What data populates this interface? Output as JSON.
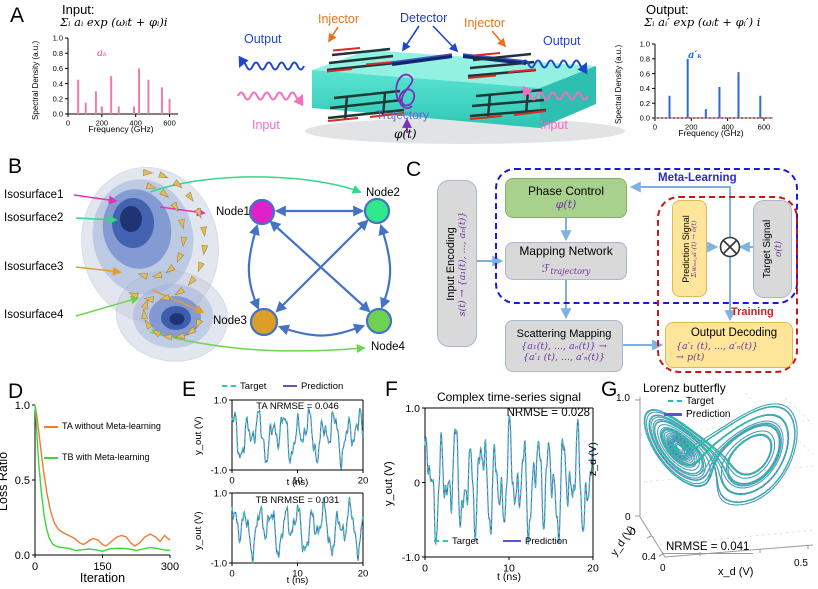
{
  "panel_labels": {
    "A": "A",
    "B": "B",
    "C": "C",
    "D": "D",
    "E": "E",
    "F": "F",
    "G": "G"
  },
  "panelA": {
    "input_formula": "Σᵢ aᵢ exp (ωᵢt + φᵢ)i",
    "output_formula": "Σᵢ aᵢ′ exp (ωᵢt + φᵢ′) i",
    "device": {
      "injector_left": "Injector",
      "detector": "Detector",
      "injector_right": "Injector",
      "output_left": "Output",
      "output_right": "Output",
      "input_left": "Input",
      "input_right": "Input",
      "trajectory": "Trajectory",
      "phase": "φ(t)"
    }
  },
  "panelB": {
    "isosurfaces": [
      "Isosurface1",
      "Isosurface2",
      "Isosurface3",
      "Isosurface4"
    ],
    "nodes": [
      {
        "label": "Node1",
        "color": "#E020C8"
      },
      {
        "label": "Node2",
        "color": "#2FE98C"
      },
      {
        "label": "Node3",
        "color": "#DB9F27"
      },
      {
        "label": "Node4",
        "color": "#6FD153"
      }
    ]
  },
  "panelC": {
    "meta_learning": "Meta-Learning",
    "training": "Training",
    "input_encoding": {
      "title": "Input Encoding",
      "formula": "s(t) → {a₁(t), ..., aₙ(t)}"
    },
    "phase_control": {
      "title": "Phase Control",
      "formula": "φ(t)"
    },
    "mapping_network": {
      "title": "Mapping Network",
      "symbol": "ℱ",
      "symbol_sub": "trajectory"
    },
    "scattering_mapping": {
      "title": "Scattering Mapping",
      "formula1": "{a₁(t), ..., aₙ(t)} →",
      "formula2": "{a′₁ (t), ..., a′ₙ(t)}"
    },
    "prediction_signal": {
      "title": "Prediction Signal",
      "formula": "Σᵢwₒᵤₜ,ᵢa′ᵢ(t) → ô(t)"
    },
    "target_signal": {
      "title": "Target Signal",
      "formula": "o(t)"
    },
    "output_decoding": {
      "title": "Output Decoding",
      "formula1": "{a′₁ (t), ..., a′ₙ(t)}",
      "formula2": "→ p(t)"
    }
  },
  "chart_data": [
    {
      "id": "input-spectrum",
      "type": "bar",
      "title": "Input:",
      "annotation": "aₖ",
      "xlabel": "Frequency (GHz)",
      "ylabel": "Spectral Density (a.u.)",
      "xlim": [
        0,
        650
      ],
      "ylim": [
        0,
        1
      ],
      "xticks": [
        "0",
        "200",
        "400",
        "600"
      ],
      "yticks": [
        "0.0",
        "0.2",
        "0.4",
        "0.6",
        "0.8",
        "1.0"
      ],
      "color": "#F27BAE",
      "x": [
        60,
        105,
        165,
        200,
        255,
        300,
        390,
        420,
        475,
        555,
        600
      ],
      "values": [
        0.45,
        0.15,
        0.3,
        0.1,
        0.5,
        0.1,
        0.1,
        0.6,
        0.45,
        0.35,
        0.2
      ]
    },
    {
      "id": "output-spectrum",
      "type": "bar",
      "title": "Output:",
      "annotation": "a′ₖ",
      "xlabel": "Frequency (GHz)",
      "ylabel": "Spectral Density (a.u.)",
      "xlim": [
        0,
        650
      ],
      "ylim": [
        0,
        1
      ],
      "xticks": [
        "0",
        "200",
        "400",
        "600"
      ],
      "yticks": [
        "0.0",
        "0.2",
        "0.4",
        "0.6",
        "0.8",
        "1.0"
      ],
      "color": "#2B6BD4",
      "baseline_dashed": true,
      "baseline_color": "#D04040",
      "x": [
        80,
        180,
        280,
        355,
        460,
        580
      ],
      "values": [
        0.3,
        0.8,
        0.12,
        0.42,
        0.62,
        0.3
      ]
    },
    {
      "id": "loss",
      "type": "line",
      "xlabel": "Iteration",
      "ylabel": "Loss Ratio",
      "xlim": [
        0,
        300
      ],
      "ylim": [
        0,
        1
      ],
      "xticks": [
        "0",
        "150",
        "300"
      ],
      "yticks": [
        "0.0",
        "0.5",
        "1.0"
      ],
      "series": [
        {
          "name": "TA without Meta-learning",
          "color": "#ED7D31",
          "x": [
            0,
            4,
            10,
            18,
            26,
            34,
            42,
            52,
            62,
            75,
            88,
            100,
            108,
            118,
            128,
            140,
            150,
            158,
            170,
            182,
            192,
            203,
            213,
            222,
            232,
            244,
            256,
            268,
            278,
            288,
            295,
            300
          ],
          "y": [
            1.0,
            0.93,
            0.78,
            0.58,
            0.42,
            0.3,
            0.22,
            0.17,
            0.15,
            0.13,
            0.11,
            0.08,
            0.07,
            0.09,
            0.11,
            0.1,
            0.07,
            0.06,
            0.09,
            0.12,
            0.13,
            0.12,
            0.08,
            0.06,
            0.08,
            0.12,
            0.14,
            0.12,
            0.09,
            0.13,
            0.11,
            0.1
          ]
        },
        {
          "name": "TB with Meta-learning",
          "color": "#39D839",
          "x": [
            0,
            4,
            8,
            14,
            20,
            26,
            32,
            40,
            50,
            60,
            75,
            90,
            105,
            120,
            135,
            150,
            165,
            180,
            195,
            210,
            225,
            240,
            255,
            270,
            285,
            300
          ],
          "y": [
            1.0,
            0.82,
            0.62,
            0.42,
            0.27,
            0.17,
            0.11,
            0.07,
            0.055,
            0.05,
            0.045,
            0.03,
            0.035,
            0.04,
            0.035,
            0.025,
            0.04,
            0.045,
            0.045,
            0.04,
            0.03,
            0.04,
            0.05,
            0.045,
            0.035,
            0.03
          ]
        }
      ]
    },
    {
      "id": "ta-signal",
      "type": "line",
      "title": "TA  NRMSE = 0.046",
      "nrmse": 0.046,
      "xlabel": "t (ns)",
      "ylabel": "y_out (V)",
      "legend": [
        "Target",
        "Prediction"
      ],
      "xlim": [
        0,
        20
      ],
      "ylim": [
        -1,
        1
      ],
      "xticks": [
        "0",
        "10",
        "20"
      ],
      "yticks": [
        "1.0",
        "-1.0"
      ],
      "target_color": "#35C4AE",
      "pred_color": "#6055C8",
      "t_range": [
        0,
        20
      ],
      "components": [
        {
          "amp": 0.42,
          "freq": 0.52,
          "phase": 0.5
        },
        {
          "amp": 0.3,
          "freq": 0.26,
          "phase": 2.1
        },
        {
          "amp": 0.18,
          "freq": 1.15,
          "phase": 4.0
        },
        {
          "amp": 0.09,
          "freq": 1.9,
          "phase": 1.0
        },
        {
          "amp": 0.05,
          "freq": 3.1,
          "phase": 0.3
        }
      ]
    },
    {
      "id": "tb-signal",
      "type": "line",
      "title": "TB  NRMSE = 0.031",
      "nrmse": 0.031,
      "xlabel": "t (ns)",
      "ylabel": "y_out (V)",
      "legend": [
        "Target",
        "Prediction"
      ],
      "xlim": [
        0,
        20
      ],
      "ylim": [
        -1,
        1
      ],
      "xticks": [
        "0",
        "10",
        "20"
      ],
      "yticks": [
        "1.0",
        "-1.0"
      ],
      "target_color": "#35C4AE",
      "pred_color": "#6055C8",
      "t_range": [
        0,
        20
      ],
      "components": [
        {
          "amp": 0.44,
          "freq": 0.5,
          "phase": 1.2
        },
        {
          "amp": 0.28,
          "freq": 0.24,
          "phase": 0.2
        },
        {
          "amp": 0.17,
          "freq": 1.05,
          "phase": 3.1
        },
        {
          "amp": 0.09,
          "freq": 2.0,
          "phase": 2.2
        },
        {
          "amp": 0.05,
          "freq": 3.3,
          "phase": 1.5
        }
      ]
    },
    {
      "id": "complex-signal",
      "type": "line",
      "title": "Complex time-series signal",
      "annotation": "NRMSE = 0.028",
      "nrmse": 0.028,
      "xlabel": "t (ns)",
      "ylabel": "y_out (V)",
      "legend": [
        "Target",
        "Prediction"
      ],
      "xlim": [
        0,
        20
      ],
      "ylim": [
        -1,
        1
      ],
      "xticks": [
        "0",
        "10",
        "20"
      ],
      "yticks": [
        "1.0",
        "0",
        "-1.0"
      ],
      "target_color": "#35C4AE",
      "pred_color": "#6055C8",
      "t_range": [
        0,
        20
      ],
      "components": [
        {
          "amp": 0.4,
          "freq": 0.62,
          "phase": 0.0
        },
        {
          "amp": 0.3,
          "freq": 1.1,
          "phase": 1.3
        },
        {
          "amp": 0.15,
          "freq": 0.28,
          "phase": 2.2
        },
        {
          "amp": 0.12,
          "freq": 2.1,
          "phase": 0.7
        },
        {
          "amp": 0.05,
          "freq": 3.6,
          "phase": 2.9
        }
      ]
    },
    {
      "id": "lorenz",
      "type": "line3d",
      "title": "Lorenz butterfly",
      "annotation": "NRMSE = 0.041",
      "nrmse": 0.041,
      "legend": [
        "Target",
        "Prediction"
      ],
      "xlabel": "x_d (V)",
      "ylabel": "y_d (V)",
      "zlabel": "z_d (V)",
      "ticks": {
        "x": [
          "0",
          "0.5"
        ],
        "y": [
          "0",
          "0.4"
        ],
        "z": [
          "1.0",
          "0"
        ]
      },
      "target_color": "#2BBFA4",
      "pred_color": "#6055C8",
      "params": {
        "sigma": 10,
        "rho": 28,
        "beta": 2.6667,
        "dt": 0.008,
        "steps": 4200
      }
    }
  ]
}
